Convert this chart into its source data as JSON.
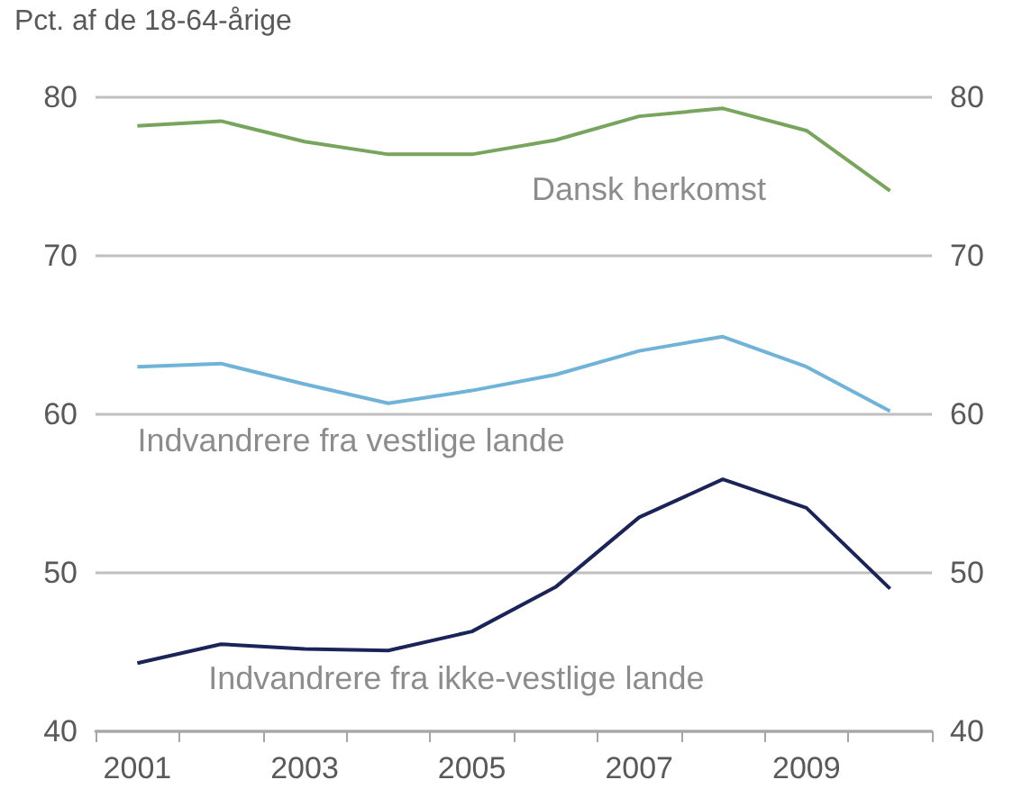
{
  "chart_data": {
    "type": "line",
    "ylabel": "Pct. af de 18-64-årige",
    "categories": [
      "2001",
      null,
      "2003",
      null,
      "2005",
      null,
      "2007",
      null,
      "2009",
      null
    ],
    "series": [
      {
        "name": "Dansk herkomst",
        "color": "#77a55e",
        "values": [
          78.2,
          78.5,
          77.2,
          76.4,
          76.4,
          77.3,
          78.8,
          79.3,
          77.9,
          74.1
        ]
      },
      {
        "name": "Indvandrere fra vestlige lande",
        "color": "#6fb3d8",
        "values": [
          63.0,
          63.2,
          61.9,
          60.7,
          61.5,
          62.5,
          64.0,
          64.9,
          63.0,
          60.2
        ]
      },
      {
        "name": "Indvandrere fra ikke-vestlige lande",
        "color": "#1b2458",
        "values": [
          44.3,
          45.5,
          45.2,
          45.1,
          46.3,
          49.1,
          53.5,
          55.9,
          54.1,
          49.0
        ]
      }
    ],
    "ylim": [
      40,
      80
    ],
    "yticks": [
      40,
      50,
      60,
      70,
      80
    ],
    "y2lim": [
      40,
      80
    ],
    "y2ticks": [
      40,
      50,
      60,
      70,
      80
    ],
    "grid": "y",
    "legend": false,
    "marker": "none",
    "line_style": "solid"
  }
}
